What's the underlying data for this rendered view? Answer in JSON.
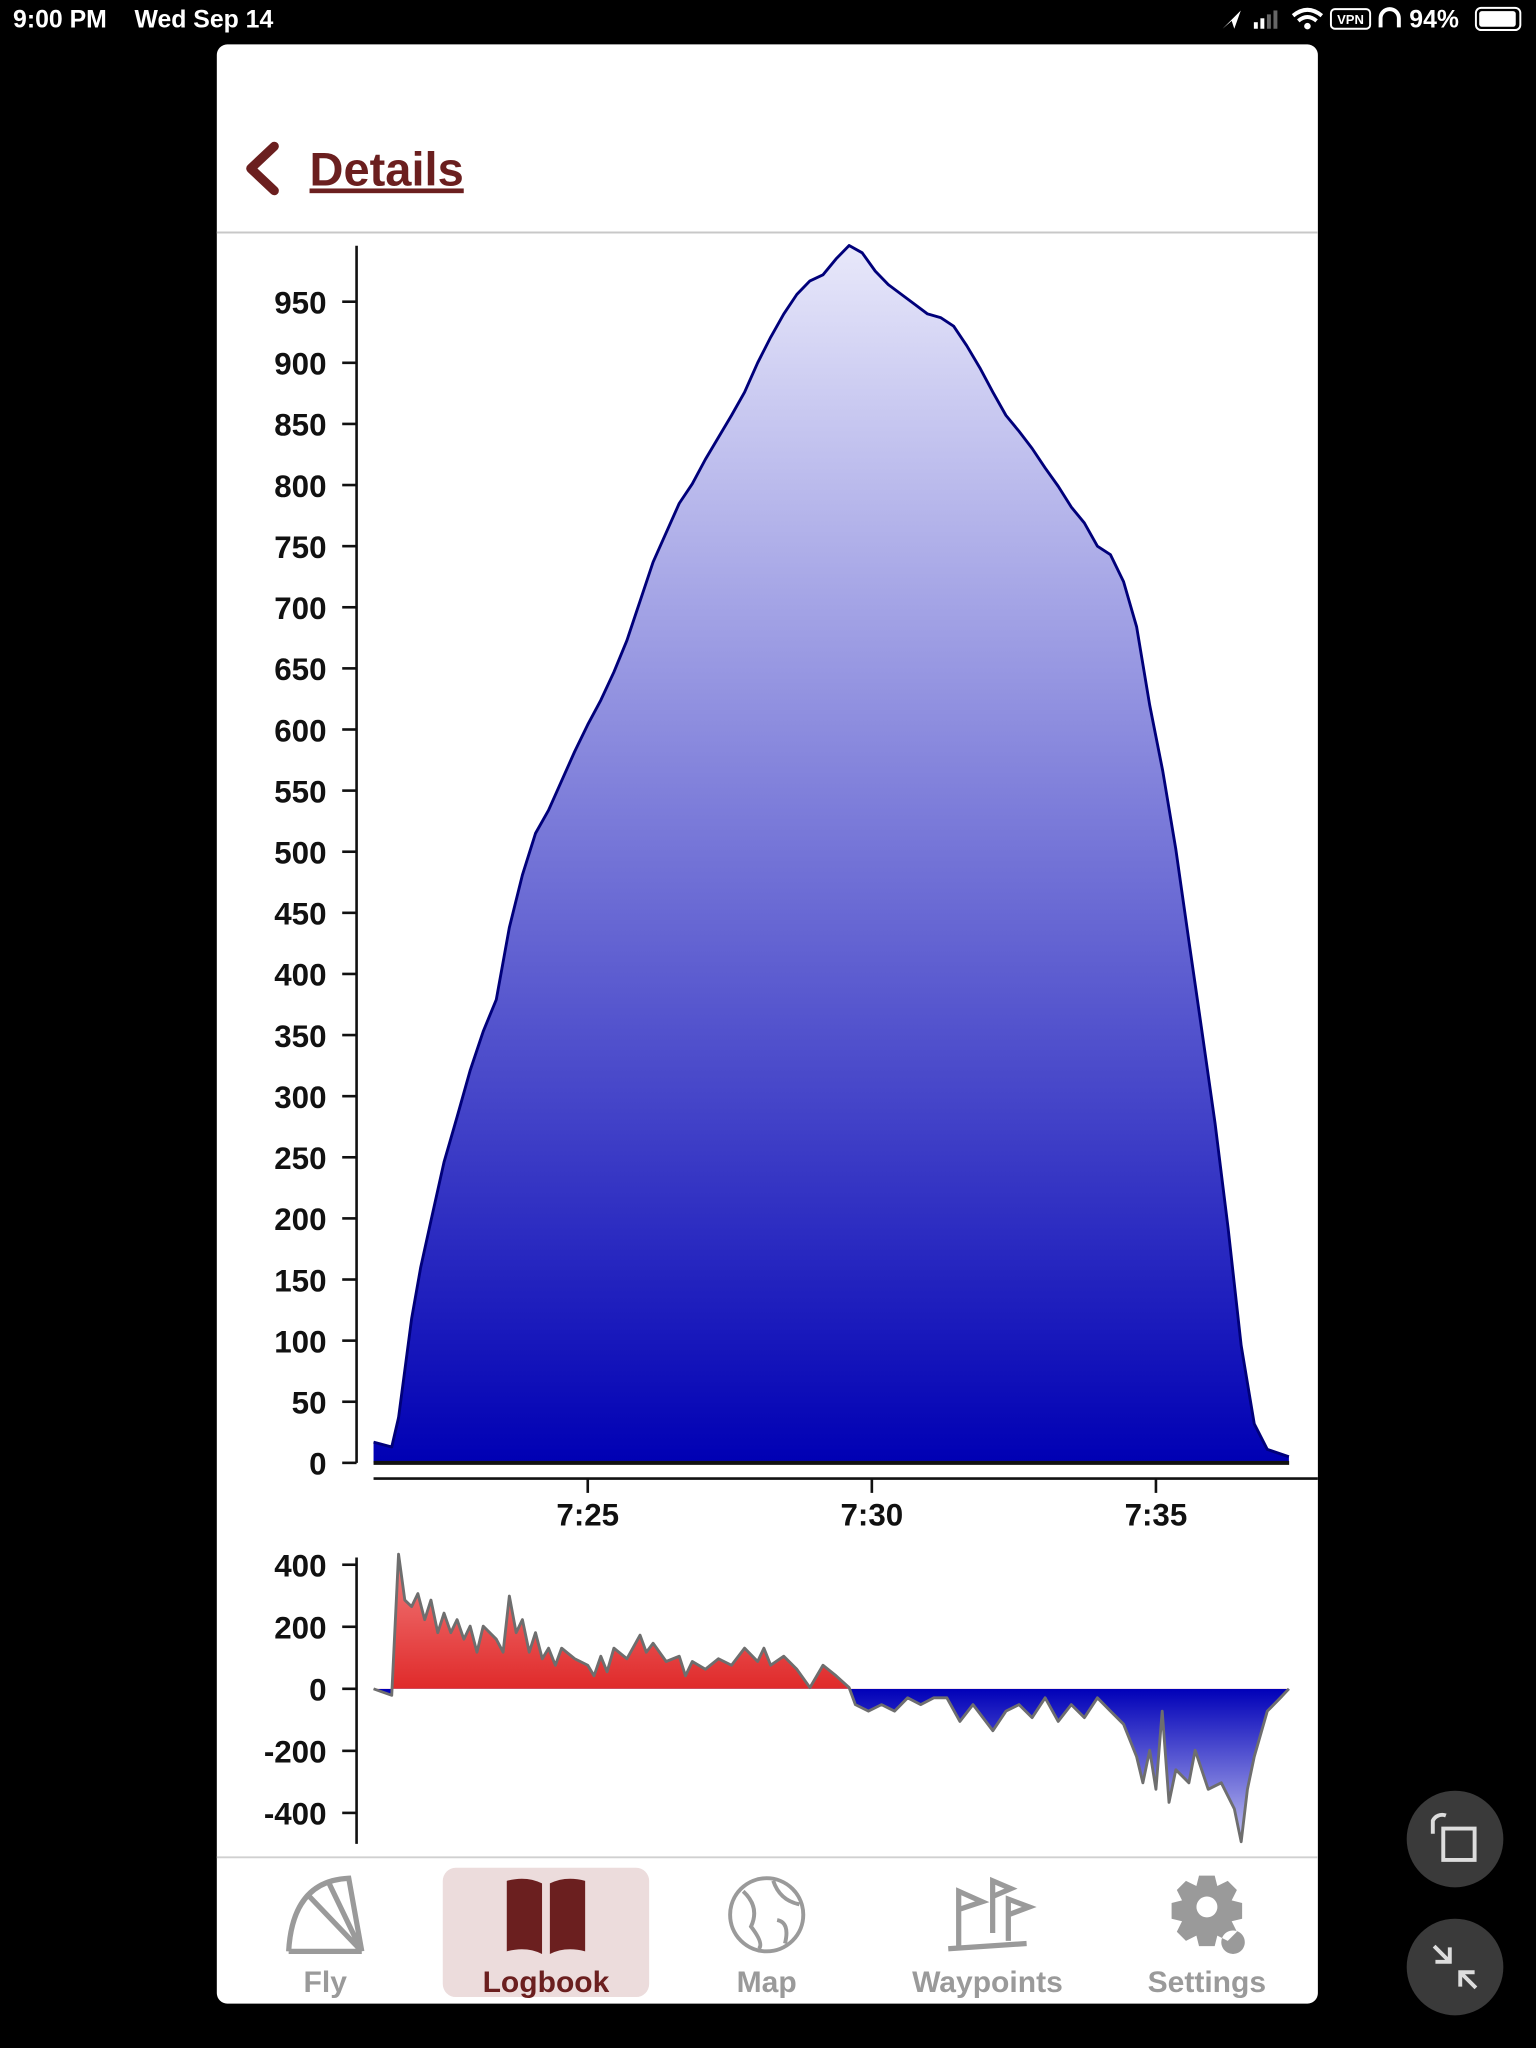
{
  "status_bar": {
    "time": "9:00 PM",
    "date": "Wed Sep 14",
    "vpn": "VPN",
    "battery": "94%"
  },
  "header": {
    "title": "Details"
  },
  "chart_data": [
    {
      "type": "area",
      "x": [
        441.23,
        441.55,
        441.67,
        441.9,
        442.06,
        442.24,
        442.47,
        442.7,
        442.93,
        443.16,
        443.39,
        443.62,
        443.85,
        444.08,
        444.31,
        444.54,
        444.77,
        445,
        445.23,
        445.46,
        445.69,
        445.92,
        446.15,
        446.38,
        446.61,
        446.84,
        447.07,
        447.3,
        447.53,
        447.76,
        447.99,
        448.22,
        448.45,
        448.68,
        448.91,
        449.14,
        449.37,
        449.6,
        449.83,
        450.06,
        450.29,
        450.52,
        450.75,
        450.98,
        451.21,
        451.44,
        451.67,
        451.9,
        452.13,
        452.36,
        452.59,
        452.82,
        453.05,
        453.28,
        453.51,
        453.74,
        453.97,
        454.2,
        454.43,
        454.66,
        454.89,
        455.12,
        455.35,
        455.58,
        455.81,
        456.04,
        456.27,
        456.5,
        456.73,
        456.96,
        457.34
      ],
      "series": [
        {
          "color": "#00007a",
          "fill_gradient": [
            "#e8e8fa",
            "#0000b4"
          ],
          "values": [
            17,
            13,
            37,
            118,
            160,
            198,
            246,
            283,
            321,
            353,
            379,
            438,
            481,
            515,
            534,
            558,
            582,
            604,
            624,
            647,
            673,
            705,
            737,
            761,
            785,
            801,
            821,
            839,
            857,
            876,
            900,
            921,
            940,
            956,
            967,
            972,
            985,
            996,
            990,
            975,
            964,
            956,
            948,
            940,
            937,
            930,
            914,
            896,
            876,
            857,
            844,
            830,
            814,
            799,
            782,
            769,
            750,
            743,
            721,
            684,
            620,
            566,
            502,
            427,
            353,
            278,
            192,
            96,
            32,
            11,
            5
          ]
        }
      ],
      "xlim": [
        441.23,
        457.85
      ],
      "xticks": [
        {
          "value": 445,
          "label": "7:25"
        },
        {
          "value": 450,
          "label": "7:30"
        },
        {
          "value": 455,
          "label": "7:35"
        }
      ],
      "ylim": [
        0,
        1000
      ],
      "yticks": [
        0,
        50,
        100,
        150,
        200,
        250,
        300,
        350,
        400,
        450,
        500,
        550,
        600,
        650,
        700,
        750,
        800,
        850,
        900,
        950
      ]
    },
    {
      "type": "area",
      "x": [
        441.23,
        441.55,
        441.67,
        441.78,
        441.9,
        442.01,
        442.13,
        442.24,
        442.36,
        442.47,
        442.59,
        442.7,
        442.82,
        442.93,
        443.05,
        443.16,
        443.39,
        443.51,
        443.62,
        443.74,
        443.85,
        443.97,
        444.08,
        444.2,
        444.31,
        444.43,
        444.54,
        444.77,
        445,
        445.11,
        445.23,
        445.34,
        445.46,
        445.69,
        445.92,
        446.03,
        446.15,
        446.38,
        446.61,
        446.72,
        446.84,
        447.07,
        447.3,
        447.53,
        447.76,
        447.99,
        448.1,
        448.22,
        448.45,
        448.68,
        448.91,
        449.14,
        449.37,
        449.6,
        449.71,
        449.94,
        450.17,
        450.4,
        450.63,
        450.86,
        451.09,
        451.32,
        451.55,
        451.78,
        452.13,
        452.36,
        452.59,
        452.82,
        453.05,
        453.28,
        453.51,
        453.74,
        453.97,
        454.2,
        454.43,
        454.66,
        454.77,
        454.89,
        455.0,
        455.11,
        455.23,
        455.35,
        455.58,
        455.69,
        455.92,
        456.15,
        456.38,
        456.5,
        456.61,
        456.73,
        456.96,
        457.19,
        457.34
      ],
      "series": [
        {
          "color": "#6e6e6e",
          "positive_gradient": [
            "#e02a2a",
            "#f28080"
          ],
          "negative_gradient": [
            "#0000b8",
            "#c4c4f2"
          ],
          "values": [
            0,
            -21,
            434,
            286,
            265,
            307,
            223,
            286,
            181,
            244,
            181,
            223,
            160,
            202,
            118,
            202,
            160,
            118,
            299,
            181,
            223,
            118,
            181,
            97,
            131,
            76,
            131,
            97,
            76,
            42,
            105,
            55,
            131,
            97,
            173,
            118,
            147,
            88,
            105,
            42,
            88,
            63,
            97,
            76,
            131,
            88,
            131,
            76,
            105,
            63,
            4,
            76,
            42,
            4,
            -51,
            -72,
            -51,
            -72,
            -29,
            -51,
            -29,
            -29,
            -105,
            -51,
            -135,
            -72,
            -51,
            -93,
            -29,
            -105,
            -51,
            -93,
            -29,
            -72,
            -114,
            -219,
            -303,
            -198,
            -324,
            -72,
            -366,
            -261,
            -303,
            -198,
            -324,
            -303,
            -387,
            -493,
            -324,
            -219,
            -72,
            -29,
            0
          ]
        }
      ],
      "xlim": [
        441.23,
        457.85
      ],
      "ylim": [
        -500,
        440
      ],
      "yticks": [
        400,
        200,
        0,
        -200,
        -400
      ]
    }
  ],
  "tab_bar": {
    "tabs": [
      "Fly",
      "Logbook",
      "Map",
      "Waypoints",
      "Settings"
    ],
    "active_index": 1
  }
}
